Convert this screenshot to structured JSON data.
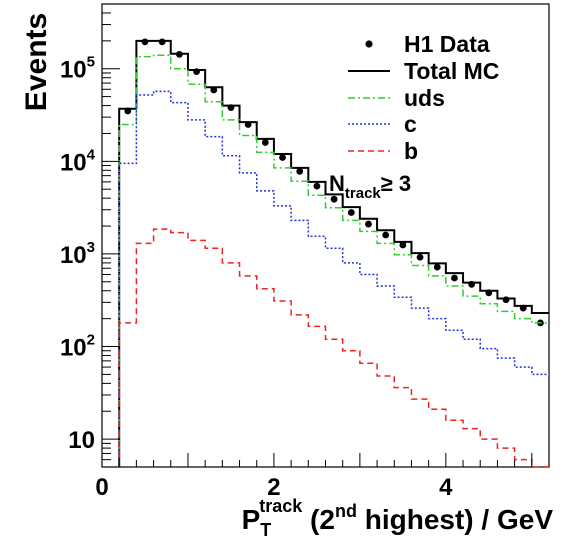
{
  "chart_data": {
    "type": "histogram",
    "xlabel": {
      "main": "P",
      "sub": "T",
      "sup": "track",
      "rest1": " (2",
      "sup2": "nd",
      "rest2": " highest)  / GeV"
    },
    "ylabel": "Events",
    "xlim": [
      0,
      5.2
    ],
    "ylim": [
      5,
      500000
    ],
    "yscale": "log",
    "xticks": [
      0,
      2,
      4
    ],
    "xtick_labels": [
      "0",
      "2",
      "4"
    ],
    "yticks": [
      10,
      100,
      1000,
      10000,
      100000
    ],
    "ytick_labels": [
      {
        "base": "10",
        "exp": ""
      },
      {
        "base": "10",
        "exp": "2"
      },
      {
        "base": "10",
        "exp": "3"
      },
      {
        "base": "10",
        "exp": "4"
      },
      {
        "base": "10",
        "exp": "5"
      }
    ],
    "annotation": {
      "main": "N",
      "sub": "track",
      "rest": "≥ 3"
    },
    "legend_position": "top-right",
    "bin_edges": [
      0.2,
      0.4,
      0.6,
      0.8,
      1.0,
      1.2,
      1.4,
      1.6,
      1.8,
      2.0,
      2.2,
      2.4,
      2.6,
      2.8,
      3.0,
      3.2,
      3.4,
      3.6,
      3.8,
      4.0,
      4.2,
      4.4,
      4.6,
      4.8,
      5.0,
      5.2
    ],
    "series": [
      {
        "name": "H1 Data",
        "style": "markers",
        "color": "#000000",
        "x": [
          0.3,
          0.5,
          0.7,
          0.9,
          1.1,
          1.3,
          1.5,
          1.7,
          1.9,
          2.1,
          2.3,
          2.5,
          2.7,
          2.9,
          3.1,
          3.3,
          3.5,
          3.7,
          3.9,
          4.1,
          4.3,
          4.5,
          4.7,
          4.9,
          5.1
        ],
        "values": [
          35000,
          195000,
          195000,
          143000,
          93000,
          59000,
          38000,
          25000,
          16000,
          11000,
          7800,
          5400,
          3900,
          2800,
          2100,
          1600,
          1250,
          920,
          720,
          550,
          470,
          380,
          320,
          260,
          180
        ]
      },
      {
        "name": "Total MC",
        "style": "solid",
        "color": "#000000",
        "values": [
          37000,
          200000,
          200000,
          145000,
          97000,
          63000,
          40000,
          26500,
          17500,
          12000,
          8500,
          6000,
          4400,
          3200,
          2400,
          1800,
          1350,
          1020,
          790,
          620,
          490,
          400,
          330,
          275,
          230
        ]
      },
      {
        "name": "uds",
        "style": "dashdot",
        "color": "#33cc33",
        "values": [
          25000,
          135000,
          140000,
          100000,
          68000,
          44000,
          28000,
          19000,
          12500,
          8500,
          6100,
          4300,
          3150,
          2300,
          1750,
          1300,
          980,
          750,
          580,
          450,
          350,
          290,
          240,
          200,
          180
        ]
      },
      {
        "name": "c",
        "style": "dotted",
        "color": "#2233dd",
        "values": [
          9500,
          52000,
          57000,
          43000,
          28000,
          18500,
          11500,
          7500,
          4800,
          3300,
          2300,
          1550,
          1150,
          800,
          600,
          450,
          340,
          260,
          200,
          150,
          120,
          95,
          75,
          60,
          50
        ]
      },
      {
        "name": "b",
        "style": "dashed",
        "color": "#ee2222",
        "values": [
          180,
          1300,
          1850,
          1700,
          1400,
          1150,
          800,
          580,
          420,
          310,
          220,
          165,
          120,
          90,
          66,
          48,
          36,
          27,
          21,
          16,
          13,
          10,
          8,
          6,
          5
        ]
      }
    ]
  }
}
